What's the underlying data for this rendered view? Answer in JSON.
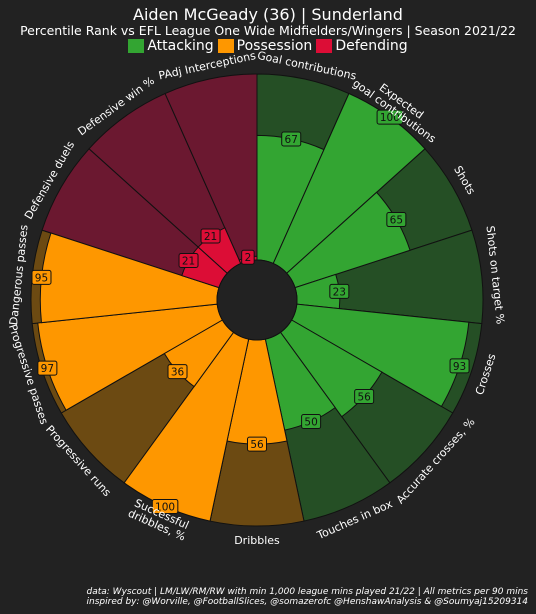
{
  "header": {
    "title": "Aiden McGeady (36) | Sunderland",
    "subtitle": "Percentile Rank vs EFL League One Wide Midfielders/Wingers | Season 2021/22"
  },
  "legend": [
    {
      "label": "Attacking",
      "color": "#33a532"
    },
    {
      "label": "Possession",
      "color": "#fe9700"
    },
    {
      "label": "Defending",
      "color": "#dc0d36"
    }
  ],
  "footer": {
    "line1": "data: Wyscout | LM/LW/RM/RW with min 1,000 league mins played 21/22 | All metrics per 90 mins",
    "line2": "inspired by: @Worville, @FootballSlices, @somazerofc @HenshawAnalysis & @Soumyaj15209314"
  },
  "chart_data": {
    "type": "pie",
    "subtype": "polar-area (pizza) percentile chart",
    "title": "Aiden McGeady (36) | Sunderland",
    "subtitle": "Percentile Rank vs EFL League One Wide Midfielders/Wingers | Season 2021/22",
    "rlim": [
      0,
      100
    ],
    "legend_position": "top-center",
    "categories": [
      "Goal contributions",
      "Expected goal contributions",
      "Shots",
      "Shots on target %",
      "Crosses",
      "Accurate crosses, %",
      "Touches in box",
      "Dribbles",
      "Successful dribbles, %",
      "Progressive runs",
      "Progressive passes",
      "Dangerous passes",
      "Defensive duels",
      "Defensive win %",
      "PAdj Interceptions"
    ],
    "values": [
      67,
      100,
      65,
      23,
      93,
      56,
      50,
      56,
      100,
      36,
      97,
      95,
      21,
      21,
      2
    ],
    "groups": [
      "Attacking",
      "Attacking",
      "Attacking",
      "Attacking",
      "Attacking",
      "Attacking",
      "Attacking",
      "Possession",
      "Possession",
      "Possession",
      "Possession",
      "Possession",
      "Defending",
      "Defending",
      "Defending"
    ],
    "group_colors": {
      "Attacking": {
        "fill": "#33a532",
        "background": "#254f25"
      },
      "Possession": {
        "fill": "#fe9700",
        "background": "#6c4a12"
      },
      "Defending": {
        "fill": "#dc0d36",
        "background": "#6b1830"
      }
    }
  }
}
